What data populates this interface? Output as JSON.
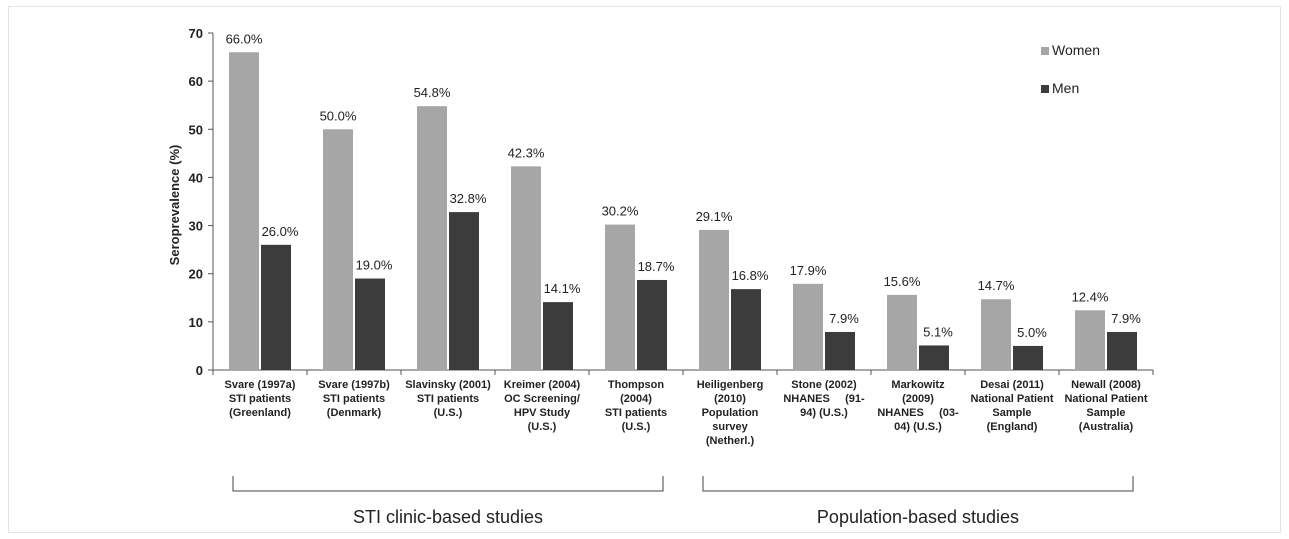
{
  "chart_data": {
    "type": "bar",
    "ylabel": "Seroprevalence (%)",
    "ylim": [
      0,
      70
    ],
    "yticks": [
      "0",
      "10",
      "20",
      "30",
      "40",
      "50",
      "60",
      "70"
    ],
    "grid": false,
    "legend_position": "top-right",
    "categories": [
      [
        "Svare (1997a)",
        "STI patients",
        "(Greenland)"
      ],
      [
        "Svare (1997b)",
        "STI patients",
        "(Denmark)"
      ],
      [
        "Slavinsky (2001)",
        "STI patients",
        "(U.S.)"
      ],
      [
        "Kreimer (2004)",
        "OC Screening/",
        "HPV Study",
        "(U.S.)"
      ],
      [
        "Thompson",
        "(2004)",
        "STI patients",
        "(U.S.)"
      ],
      [
        "Heiligenberg",
        "(2010)",
        "Population",
        "survey",
        "(Netherl.)"
      ],
      [
        "Stone (2002)",
        "NHANES     (91-",
        "94) (U.S.)"
      ],
      [
        "Markowitz",
        "(2009)",
        "NHANES     (03-",
        "04) (U.S.)"
      ],
      [
        "Desai (2011)",
        "National Patient",
        "Sample",
        "(England)"
      ],
      [
        "Newall (2008)",
        "National Patient",
        "Sample",
        "(Australia)"
      ]
    ],
    "series": [
      {
        "name": "Women",
        "color": "#a6a6a6",
        "values": [
          66.0,
          50.0,
          54.8,
          42.3,
          30.2,
          29.1,
          17.9,
          15.6,
          14.7,
          12.4
        ],
        "labels": [
          "66.0%",
          "50.0%",
          "54.8%",
          "42.3%",
          "30.2%",
          "29.1%",
          "17.9%",
          "15.6%",
          "14.7%",
          "12.4%"
        ]
      },
      {
        "name": "Men",
        "color": "#3c3c3c",
        "values": [
          26.0,
          19.0,
          32.8,
          14.1,
          18.7,
          16.8,
          7.9,
          5.1,
          5.0,
          7.9
        ],
        "labels": [
          "26.0%",
          "19.0%",
          "32.8%",
          "14.1%",
          "18.7%",
          "16.8%",
          "7.9%",
          "5.1%",
          "5.0%",
          "7.9%"
        ]
      }
    ],
    "groups": [
      {
        "label": "STI clinic-based studies",
        "from": 0,
        "to": 4
      },
      {
        "label": "Population-based studies",
        "from": 5,
        "to": 9
      }
    ]
  }
}
